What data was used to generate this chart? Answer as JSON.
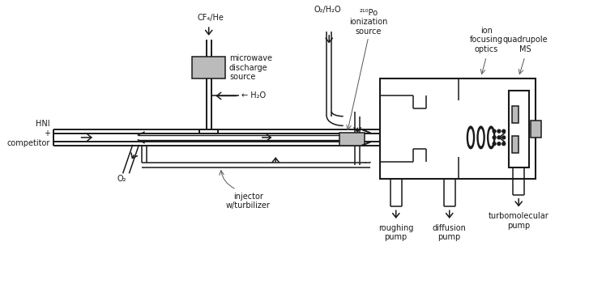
{
  "bg_color": "#ffffff",
  "line_color": "#1a1a1a",
  "gray_fill": "#aaaaaa",
  "light_gray": "#bbbbbb",
  "font_size": 7.0,
  "labels": {
    "cf4_he": "CF₄/He",
    "microwave": "microwave\ndischarge\nsource",
    "h2o": "← H₂O",
    "o2_h2o": "O₂/H₂O",
    "po210": "²¹⁰Po\nionization\nsource",
    "ion_focusing": "ion\nfocusing\noptics",
    "quadrupole": "quadrupole\nMS",
    "hni": "HNI\n+\ncompetitor",
    "o2": "O₂",
    "injector": "injector\nw/turbilizer",
    "roughing": "roughing\npump",
    "diffusion": "diffusion\npump",
    "turbo": "turbomolecular\npump"
  }
}
